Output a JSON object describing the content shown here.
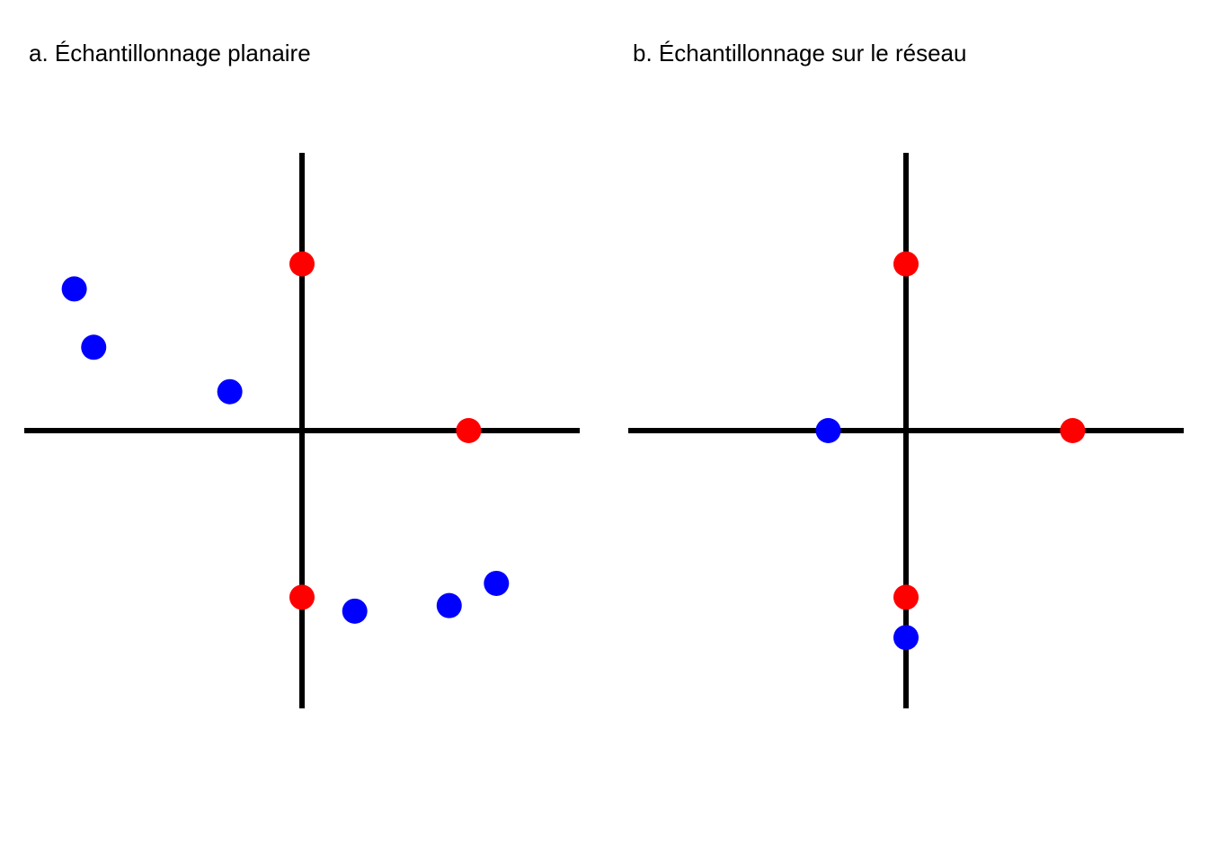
{
  "colors": {
    "network": "#000000",
    "red_points": "#ff0000",
    "blue_points": "#0000ff"
  },
  "chart_data": [
    {
      "type": "scatter",
      "title": "a. Échantillonnage planaire",
      "xlim": [
        -1,
        1
      ],
      "ylim": [
        -1,
        1
      ],
      "grid": false,
      "network_lines": [
        {
          "x": [
            -1,
            1
          ],
          "y": [
            0,
            0
          ]
        },
        {
          "x": [
            0,
            0
          ],
          "y": [
            -1,
            1
          ]
        }
      ],
      "series": [
        {
          "color": "#ff0000",
          "points": [
            {
              "x": 0.0,
              "y": 0.6
            },
            {
              "x": 0.6,
              "y": 0.0
            },
            {
              "x": 0.0,
              "y": -0.6
            }
          ]
        },
        {
          "color": "#0000ff",
          "points": [
            {
              "x": -0.82,
              "y": 0.51
            },
            {
              "x": -0.75,
              "y": 0.3
            },
            {
              "x": -0.26,
              "y": 0.14
            },
            {
              "x": 0.19,
              "y": -0.65
            },
            {
              "x": 0.53,
              "y": -0.63
            },
            {
              "x": 0.7,
              "y": -0.55
            }
          ]
        }
      ]
    },
    {
      "type": "scatter",
      "title": "b. Échantillonnage sur le réseau",
      "xlim": [
        -1,
        1
      ],
      "ylim": [
        -1,
        1
      ],
      "grid": false,
      "network_lines": [
        {
          "x": [
            -1,
            1
          ],
          "y": [
            0,
            0
          ]
        },
        {
          "x": [
            0,
            0
          ],
          "y": [
            -1,
            1
          ]
        }
      ],
      "series": [
        {
          "color": "#ff0000",
          "points": [
            {
              "x": 0.0,
              "y": 0.6
            },
            {
              "x": 0.6,
              "y": 0.0
            },
            {
              "x": 0.0,
              "y": -0.6
            }
          ]
        },
        {
          "color": "#0000ff",
          "points": [
            {
              "x": -0.28,
              "y": 0.0
            },
            {
              "x": 0.0,
              "y": -0.745
            }
          ]
        }
      ]
    }
  ]
}
